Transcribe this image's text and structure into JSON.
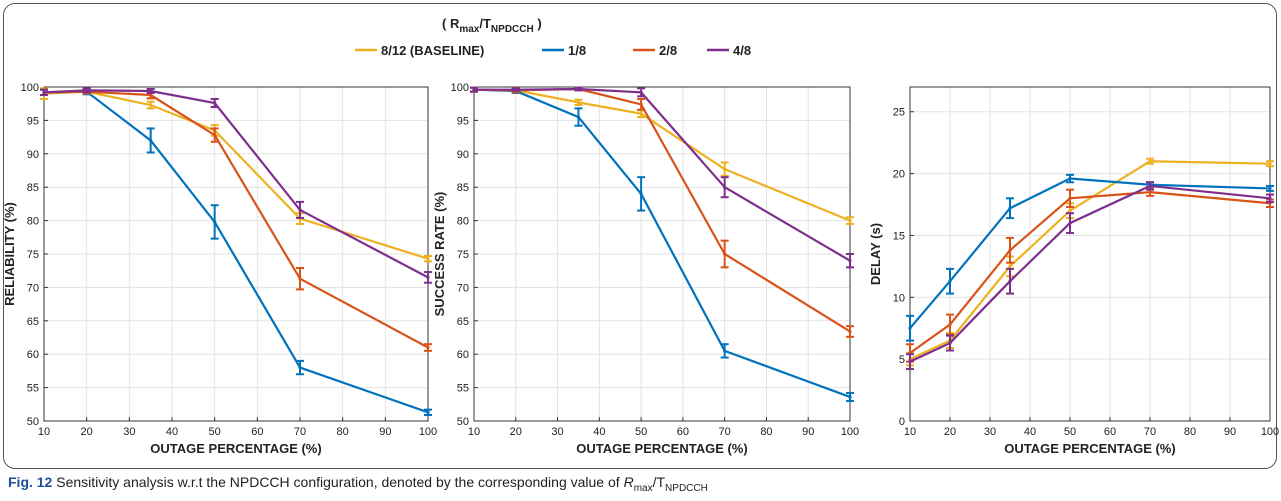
{
  "legend": {
    "title_main": "( R",
    "title_sub1": "max",
    "title_mid": "/T",
    "title_sub2": "NPDCCH",
    "title_end": " )"
  },
  "caption": {
    "label": "Fig. 12",
    "text_before": " Sensitivity analysis w.r.t the NPDCCH configuration, denoted by the corresponding value of ",
    "var_r": "R",
    "var_r_sub": "max",
    "slash": "/T",
    "var_t_sub": "NPDCCH"
  },
  "chart_data": [
    {
      "type": "line",
      "xlabel": "OUTAGE PERCENTAGE (%)",
      "ylabel": "RELIABILITY (%)",
      "xlim": [
        10,
        100
      ],
      "ylim": [
        50,
        100
      ],
      "xticks": [
        10,
        20,
        30,
        40,
        50,
        60,
        70,
        80,
        90,
        100
      ],
      "yticks": [
        50,
        55,
        60,
        65,
        70,
        75,
        80,
        85,
        90,
        95,
        100
      ],
      "grid": true,
      "x": [
        10,
        20,
        35,
        50,
        70,
        100
      ],
      "series": [
        {
          "name": "8/12 (BASELINE)",
          "color": "#EDB120",
          "values": [
            99,
            99.3,
            97.3,
            93.5,
            80.3,
            74.3
          ],
          "err": [
            0.8,
            0.3,
            0.5,
            0.8,
            0.8,
            0.4
          ]
        },
        {
          "name": "1/8",
          "color": "#0072BD",
          "values": [
            99.2,
            99.3,
            92.0,
            79.8,
            58.0,
            51.3
          ],
          "err": [
            0.4,
            0.4,
            1.8,
            2.5,
            1.0,
            0.4
          ]
        },
        {
          "name": "2/8",
          "color": "#D95319",
          "values": [
            99.2,
            99.3,
            98.8,
            92.8,
            71.3,
            61.0
          ],
          "err": [
            0.4,
            0.3,
            0.5,
            1.0,
            1.6,
            0.5
          ]
        },
        {
          "name": "4/8",
          "color": "#7E2F8E",
          "values": [
            99.2,
            99.5,
            99.4,
            97.6,
            81.6,
            71.5
          ],
          "err": [
            0.4,
            0.3,
            0.3,
            0.6,
            1.2,
            0.8
          ]
        }
      ]
    },
    {
      "type": "line",
      "xlabel": "OUTAGE PERCENTAGE (%)",
      "ylabel": "SUCCESS RATE (%)",
      "xlim": [
        10,
        100
      ],
      "ylim": [
        50,
        100
      ],
      "xticks": [
        10,
        20,
        30,
        40,
        50,
        60,
        70,
        80,
        90,
        100
      ],
      "yticks": [
        50,
        55,
        60,
        65,
        70,
        75,
        80,
        85,
        90,
        95,
        100
      ],
      "grid": true,
      "x": [
        10,
        20,
        35,
        50,
        70,
        100
      ],
      "series": [
        {
          "name": "8/12 (BASELINE)",
          "color": "#EDB120",
          "values": [
            99.6,
            99.5,
            97.7,
            96.0,
            87.7,
            80.0
          ],
          "err": [
            0.3,
            0.3,
            0.4,
            0.5,
            1.0,
            0.5
          ]
        },
        {
          "name": "1/8",
          "color": "#0072BD",
          "values": [
            99.6,
            99.4,
            95.5,
            84.0,
            60.5,
            53.6
          ],
          "err": [
            0.3,
            0.3,
            1.3,
            2.5,
            1.0,
            0.6
          ]
        },
        {
          "name": "2/8",
          "color": "#D95319",
          "values": [
            99.6,
            99.5,
            99.7,
            97.4,
            75.0,
            63.4
          ],
          "err": [
            0.3,
            0.3,
            0.2,
            0.8,
            2.0,
            0.8
          ]
        },
        {
          "name": "4/8",
          "color": "#7E2F8E",
          "values": [
            99.6,
            99.6,
            99.7,
            99.2,
            85.0,
            74.0
          ],
          "err": [
            0.3,
            0.2,
            0.2,
            0.6,
            1.5,
            1.0
          ]
        }
      ]
    },
    {
      "type": "line",
      "xlabel": "OUTAGE PERCENTAGE (%)",
      "ylabel": "DELAY (s)",
      "xlim": [
        10,
        100
      ],
      "ylim": [
        0,
        27
      ],
      "xticks": [
        10,
        20,
        30,
        40,
        50,
        60,
        70,
        80,
        90,
        100
      ],
      "yticks": [
        0,
        5,
        10,
        15,
        20,
        25
      ],
      "grid": true,
      "x": [
        10,
        20,
        35,
        50,
        70,
        100
      ],
      "series": [
        {
          "name": "8/12 (BASELINE)",
          "color": "#EDB120",
          "values": [
            5.0,
            6.5,
            12.5,
            17.0,
            21.0,
            20.8
          ],
          "err": [
            0.5,
            0.6,
            0.8,
            0.6,
            0.2,
            0.2
          ]
        },
        {
          "name": "1/8",
          "color": "#0072BD",
          "values": [
            7.5,
            11.3,
            17.2,
            19.6,
            19.1,
            18.8
          ],
          "err": [
            1.0,
            1.0,
            0.8,
            0.3,
            0.2,
            0.2
          ]
        },
        {
          "name": "2/8",
          "color": "#D95319",
          "values": [
            5.5,
            7.8,
            13.8,
            18.0,
            18.5,
            17.6
          ],
          "err": [
            0.7,
            0.8,
            1.0,
            0.7,
            0.3,
            0.3
          ]
        },
        {
          "name": "4/8",
          "color": "#7E2F8E",
          "values": [
            4.8,
            6.3,
            11.3,
            16.0,
            19.0,
            18.0
          ],
          "err": [
            0.6,
            0.6,
            1.0,
            0.8,
            0.3,
            0.3
          ]
        }
      ]
    }
  ]
}
